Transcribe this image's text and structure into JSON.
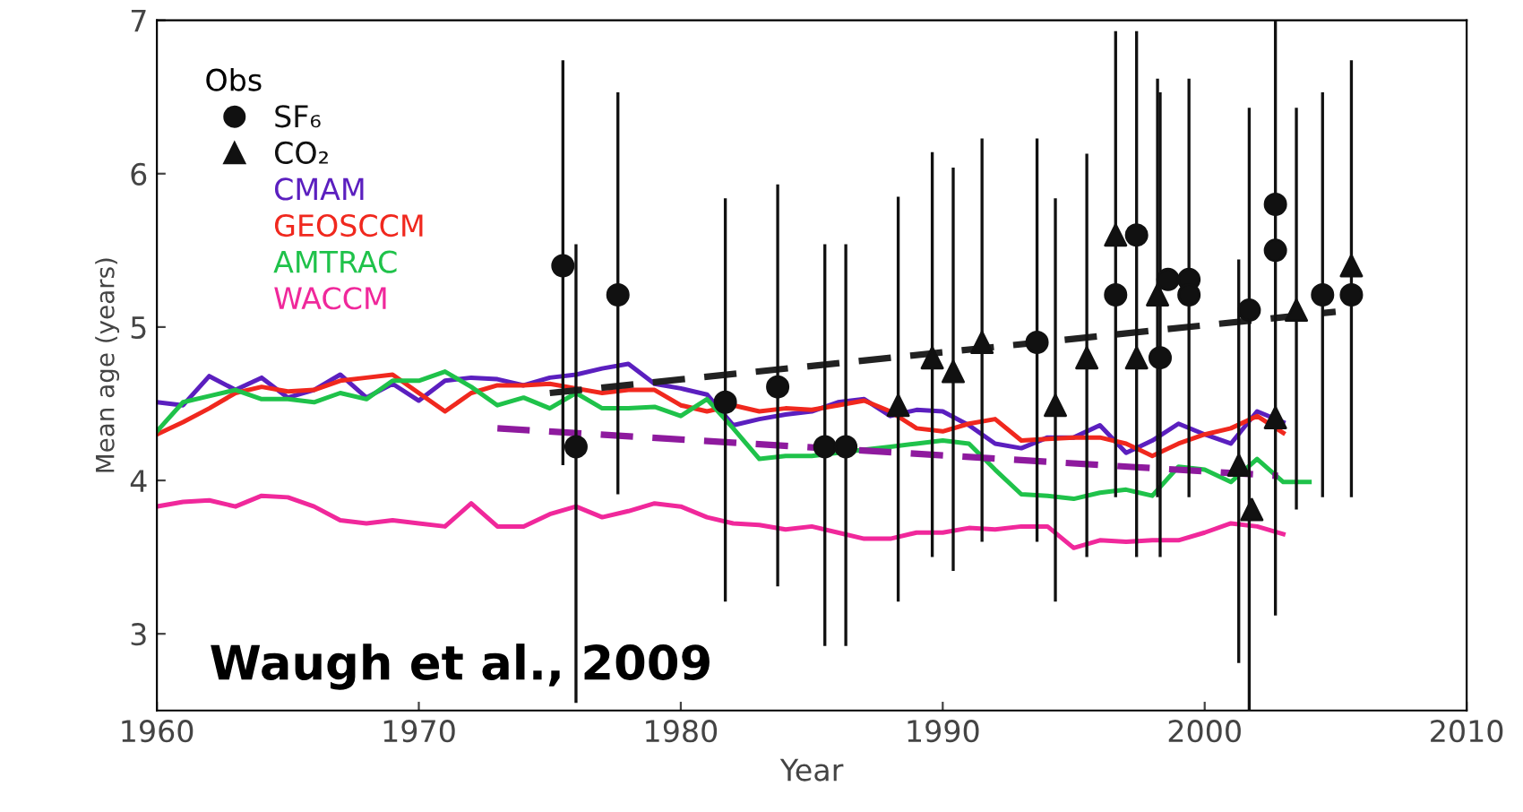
{
  "chart_data": {
    "type": "line",
    "xlabel": "Year",
    "ylabel": "Mean age (years)",
    "legend_title": "Obs",
    "xlim": [
      1960,
      2010
    ],
    "xticks": [
      1960,
      1970,
      1980,
      1990,
      2000,
      2010
    ],
    "ylim": [
      2.5,
      7
    ],
    "yticks": [
      3,
      4,
      5,
      6,
      7
    ],
    "grid": false,
    "legend": "top left",
    "line_style": "solid",
    "annotations": [
      "Waugh et al., 2009"
    ],
    "series": [
      {
        "name": "CMAM",
        "color": "#5b1fbf",
        "x": [
          1960,
          1961,
          1962,
          1963,
          1964,
          1965,
          1966,
          1967,
          1968,
          1969,
          1970,
          1971,
          1972,
          1973,
          1974,
          1975,
          1976,
          1977,
          1978,
          1979,
          1980,
          1981,
          1982,
          1983,
          1984,
          1985,
          1986,
          1987,
          1988,
          1989,
          1990,
          1991,
          1992,
          1993,
          1994,
          1995,
          1996,
          1997,
          1998,
          1999,
          2000,
          2001,
          2002,
          2003
        ],
        "values": [
          4.51,
          4.49,
          4.68,
          4.59,
          4.67,
          4.54,
          4.59,
          4.69,
          4.54,
          4.63,
          4.52,
          4.65,
          4.67,
          4.66,
          4.62,
          4.67,
          4.69,
          4.73,
          4.76,
          4.63,
          4.6,
          4.56,
          4.36,
          4.4,
          4.43,
          4.45,
          4.51,
          4.53,
          4.42,
          4.46,
          4.45,
          4.36,
          4.24,
          4.21,
          4.28,
          4.28,
          4.36,
          4.18,
          4.26,
          4.37,
          4.3,
          4.24,
          4.45,
          4.38
        ]
      },
      {
        "name": "GEOSCCM",
        "type": "line",
        "color": "#f0281e",
        "x": [
          1960,
          1961,
          1962,
          1963,
          1964,
          1965,
          1966,
          1967,
          1968,
          1969,
          1970,
          1971,
          1972,
          1973,
          1974,
          1975,
          1976,
          1977,
          1978,
          1979,
          1980,
          1981,
          1982,
          1983,
          1984,
          1985,
          1986,
          1987,
          1988,
          1989,
          1990,
          1991,
          1992,
          1993,
          1994,
          1995,
          1996,
          1997,
          1998,
          1999,
          2000,
          2001,
          2002,
          2003
        ],
        "values": [
          4.3,
          4.38,
          4.47,
          4.57,
          4.61,
          4.58,
          4.59,
          4.65,
          4.67,
          4.69,
          4.57,
          4.45,
          4.57,
          4.62,
          4.62,
          4.63,
          4.6,
          4.57,
          4.59,
          4.59,
          4.49,
          4.45,
          4.49,
          4.45,
          4.47,
          4.46,
          4.49,
          4.52,
          4.45,
          4.34,
          4.32,
          4.37,
          4.4,
          4.26,
          4.27,
          4.28,
          4.28,
          4.24,
          4.16,
          4.24,
          4.3,
          4.34,
          4.42,
          4.31
        ]
      },
      {
        "name": "AMTRAC",
        "type": "line",
        "color": "#1fc24a",
        "x": [
          1960,
          1961,
          1962,
          1963,
          1964,
          1965,
          1966,
          1967,
          1968,
          1969,
          1970,
          1971,
          1972,
          1973,
          1974,
          1975,
          1976,
          1977,
          1978,
          1979,
          1980,
          1981,
          1982,
          1983,
          1984,
          1985,
          1986,
          1987,
          1988,
          1989,
          1990,
          1991,
          1992,
          1993,
          1994,
          1995,
          1996,
          1997,
          1998,
          1999,
          2000,
          2001,
          2002,
          2003,
          2004
        ],
        "values": [
          4.32,
          4.51,
          4.55,
          4.59,
          4.53,
          4.53,
          4.51,
          4.57,
          4.53,
          4.65,
          4.65,
          4.71,
          4.61,
          4.49,
          4.54,
          4.47,
          4.57,
          4.47,
          4.47,
          4.48,
          4.42,
          4.53,
          4.34,
          4.14,
          4.16,
          4.16,
          4.18,
          4.2,
          4.22,
          4.24,
          4.26,
          4.24,
          4.07,
          3.91,
          3.9,
          3.88,
          3.92,
          3.94,
          3.9,
          4.09,
          4.07,
          3.99,
          4.14,
          3.99,
          3.99
        ]
      },
      {
        "name": "WACCM",
        "type": "line",
        "color": "#f0289b",
        "x": [
          1960,
          1961,
          1962,
          1963,
          1964,
          1965,
          1966,
          1967,
          1968,
          1969,
          1970,
          1971,
          1972,
          1973,
          1974,
          1975,
          1976,
          1977,
          1978,
          1979,
          1980,
          1981,
          1982,
          1983,
          1984,
          1985,
          1986,
          1987,
          1988,
          1989,
          1990,
          1991,
          1992,
          1993,
          1994,
          1995,
          1996,
          1997,
          1998,
          1999,
          2000,
          2001,
          2002,
          2003
        ],
        "values": [
          3.83,
          3.86,
          3.87,
          3.83,
          3.9,
          3.89,
          3.83,
          3.74,
          3.72,
          3.74,
          3.72,
          3.7,
          3.85,
          3.7,
          3.7,
          3.78,
          3.83,
          3.76,
          3.8,
          3.85,
          3.83,
          3.76,
          3.72,
          3.71,
          3.68,
          3.7,
          3.66,
          3.62,
          3.62,
          3.66,
          3.66,
          3.69,
          3.68,
          3.7,
          3.7,
          3.56,
          3.61,
          3.6,
          3.61,
          3.61,
          3.66,
          3.72,
          3.7,
          3.65
        ]
      },
      {
        "type": "line",
        "line_style": "dashed",
        "color": "#222222",
        "x": [
          1975,
          2005
        ],
        "values": [
          4.57,
          5.1
        ]
      },
      {
        "type": "line",
        "line_style": "dashed",
        "color": "#8e1a9e",
        "x": [
          1973,
          2002.8
        ],
        "values": [
          4.34,
          4.03
        ]
      },
      {
        "name": "SF₆",
        "type": "scatter",
        "marker": "circle",
        "color": "#111111",
        "x": [
          1975.5,
          1976.0,
          1977.6,
          1981.7,
          1983.7,
          1985.5,
          1986.3,
          1993.6,
          1996.6,
          1997.4,
          1998.3,
          1998.6,
          1999.4,
          1999.4,
          2001.7,
          2002.7,
          2002.7,
          2004.5,
          2005.6
        ],
        "values": [
          5.4,
          4.22,
          5.21,
          4.51,
          4.61,
          4.22,
          4.22,
          4.9,
          5.21,
          5.6,
          4.8,
          5.31,
          5.31,
          5.21,
          5.11,
          5.8,
          5.5,
          5.21,
          5.21
        ],
        "errors": [
          [
            4.1,
            6.74
          ],
          [
            2.55,
            5.54
          ],
          [
            3.91,
            6.53
          ],
          [
            3.21,
            5.84
          ],
          [
            3.31,
            5.93
          ],
          [
            2.92,
            5.54
          ],
          [
            2.92,
            5.54
          ],
          [
            3.6,
            6.23
          ],
          null,
          [
            3.5,
            6.93
          ],
          [
            3.5,
            6.53
          ],
          null,
          [
            3.89,
            6.62
          ],
          null,
          [
            2.5,
            6.43
          ],
          [
            3.12,
            7.0
          ],
          null,
          [
            3.89,
            6.53
          ],
          null
        ]
      },
      {
        "name": "CO₂",
        "type": "scatter",
        "marker": "triangle",
        "color": "#111111",
        "x": [
          1988.3,
          1989.6,
          1990.4,
          1991.5,
          1994.3,
          1995.5,
          1996.6,
          1997.4,
          1998.2,
          2001.3,
          2001.8,
          2002.7,
          2003.5,
          2005.6
        ],
        "values": [
          4.49,
          4.8,
          4.71,
          4.9,
          4.49,
          4.8,
          5.6,
          4.8,
          5.21,
          4.1,
          3.81,
          4.41,
          5.11,
          5.4
        ],
        "errors": [
          [
            3.21,
            5.85
          ],
          [
            3.5,
            6.14
          ],
          [
            3.41,
            6.04
          ],
          [
            3.6,
            6.23
          ],
          [
            3.21,
            5.84
          ],
          [
            3.5,
            6.13
          ],
          [
            3.89,
            6.93
          ],
          null,
          [
            3.89,
            6.62
          ],
          [
            2.81,
            5.44
          ],
          null,
          null,
          [
            3.81,
            6.43
          ],
          [
            3.89,
            6.74
          ]
        ]
      }
    ]
  }
}
